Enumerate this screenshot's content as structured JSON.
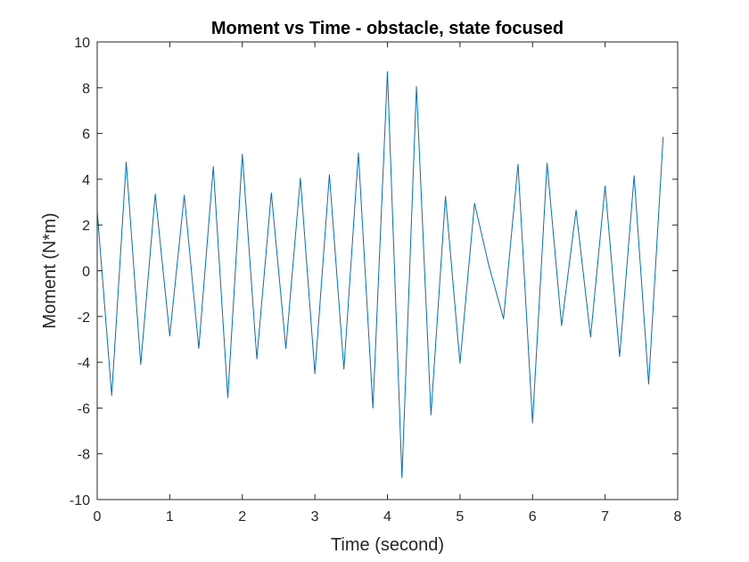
{
  "chart_data": {
    "type": "line",
    "title": "Moment vs Time - obstacle, state focused",
    "xlabel": "Time (second)",
    "ylabel": "Moment (N*m)",
    "xlim": [
      0,
      8
    ],
    "ylim": [
      -10,
      10
    ],
    "xticks": [
      0,
      1,
      2,
      3,
      4,
      5,
      6,
      7,
      8
    ],
    "yticks": [
      -10,
      -8,
      -6,
      -4,
      -2,
      0,
      2,
      4,
      6,
      8,
      10
    ],
    "grid": false,
    "series": [
      {
        "color": "#0072bd",
        "x": [
          0,
          0.2,
          0.4,
          0.6,
          0.8,
          1.0,
          1.2,
          1.4,
          1.6,
          1.8,
          2.0,
          2.2,
          2.4,
          2.6,
          2.8,
          3.0,
          3.2,
          3.4,
          3.6,
          3.8,
          4.0,
          4.2,
          4.4,
          4.6,
          4.8,
          5.0,
          5.2,
          5.4,
          5.6,
          5.8,
          6.0,
          6.2,
          6.4,
          6.6,
          6.8,
          7.0,
          7.2,
          7.4,
          7.6,
          7.8
        ],
        "y": [
          2.6,
          -5.45,
          4.75,
          -4.1,
          3.35,
          -2.85,
          3.3,
          -3.4,
          4.55,
          -5.55,
          5.1,
          -3.85,
          3.4,
          -3.4,
          4.05,
          -4.5,
          4.2,
          -4.3,
          5.15,
          -6.0,
          8.7,
          -9.05,
          8.05,
          -6.3,
          3.25,
          -4.05,
          2.95,
          0.2,
          -2.1,
          4.65,
          -6.65,
          4.7,
          -2.4,
          2.65,
          -2.9,
          3.7,
          -3.75,
          4.15,
          -4.95,
          5.85
        ]
      }
    ]
  }
}
